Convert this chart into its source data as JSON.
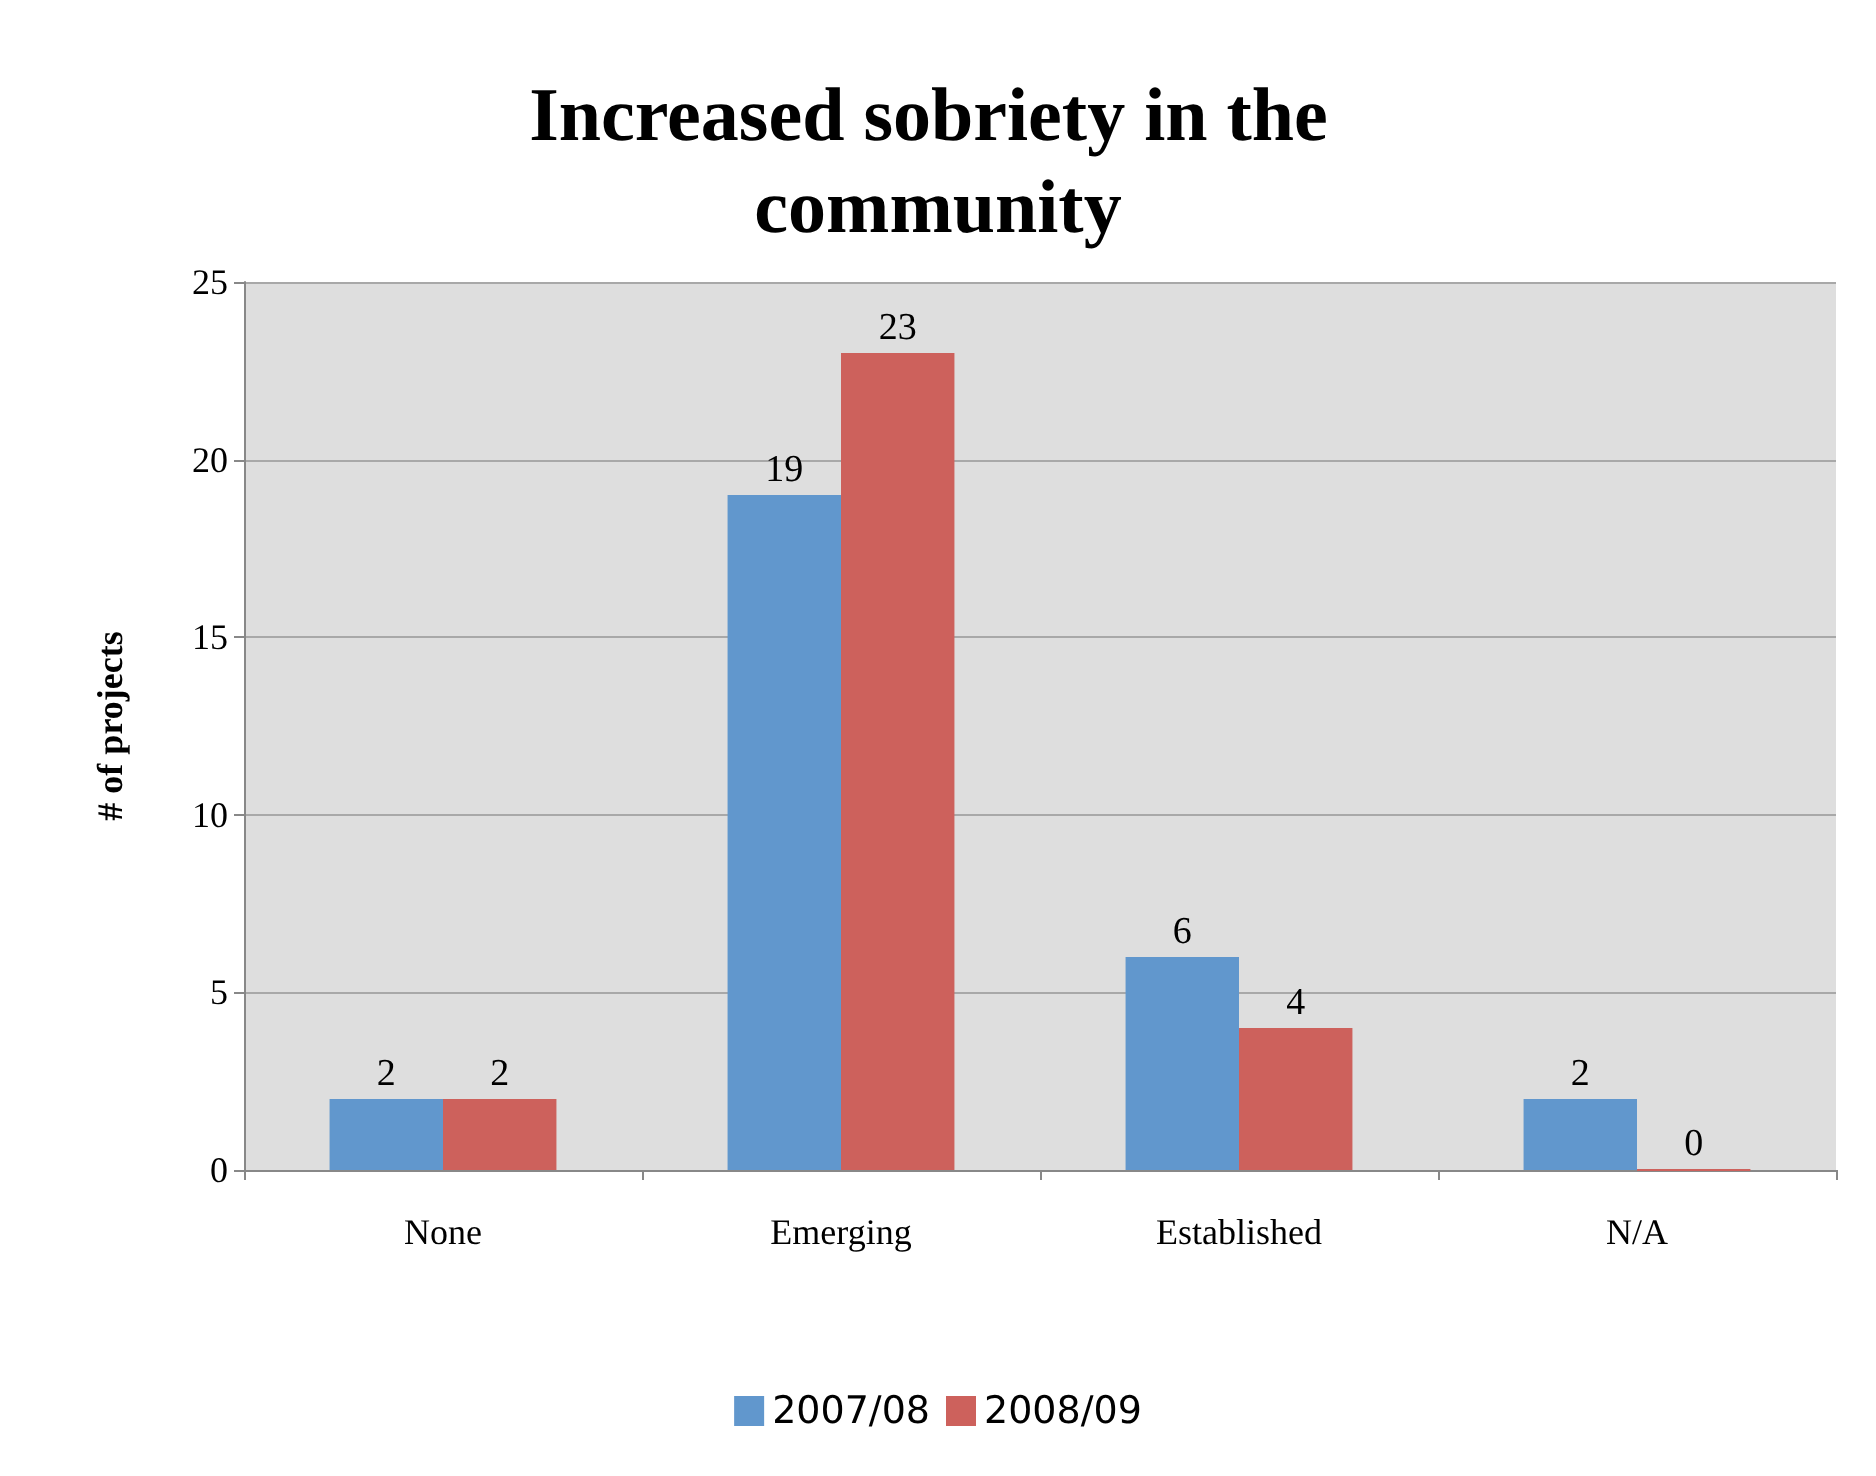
{
  "chart_data": {
    "type": "bar",
    "title": "Increased sobriety in the community",
    "ylabel": "# of projects",
    "categories": [
      "None",
      "Emerging",
      "Established",
      "N/A"
    ],
    "series": [
      {
        "name": "2007/08",
        "color": "#6197cd",
        "values": [
          2,
          19,
          6,
          2
        ]
      },
      {
        "name": "2008/09",
        "color": "#cd615c",
        "values": [
          2,
          23,
          4,
          0
        ]
      }
    ],
    "ylim": [
      0,
      25
    ],
    "yticks": [
      0,
      5,
      10,
      15,
      20,
      25
    ],
    "grid": "y",
    "legend": "bottom",
    "data_labels": true
  }
}
